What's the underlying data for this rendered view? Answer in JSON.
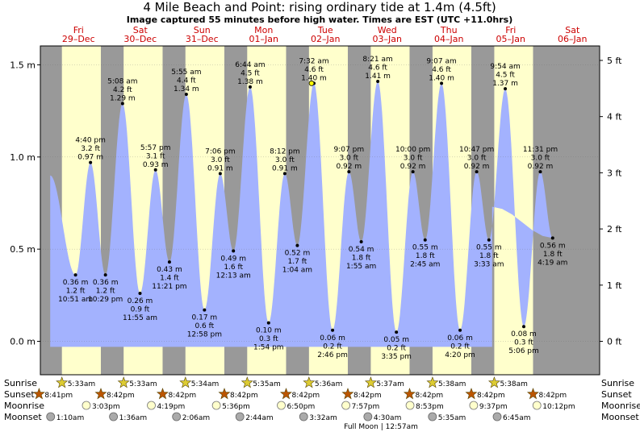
{
  "title": "4 Mile Beach and Point: rising  ordinary tide at 1.4m (4.5ft)",
  "subtitle": "Image captured 55 minutes before high water. Times are EST (UTC +11.0hrs)",
  "days": [
    {
      "dow": "Fri",
      "date": "29–Dec"
    },
    {
      "dow": "Sat",
      "date": "30–Dec"
    },
    {
      "dow": "Sun",
      "date": "31–Dec"
    },
    {
      "dow": "Mon",
      "date": "01–Jan"
    },
    {
      "dow": "Tue",
      "date": "02–Jan"
    },
    {
      "dow": "Wed",
      "date": "03–Jan"
    },
    {
      "dow": "Thu",
      "date": "04–Jan"
    },
    {
      "dow": "Fri",
      "date": "05–Jan"
    },
    {
      "dow": "Sat",
      "date": "06–Jan"
    }
  ],
  "chart_data": {
    "type": "area",
    "x_unit": "hours from 29-Dec 00:00 EST",
    "y_unit": "m",
    "ylim_m": [
      -0.03,
      1.6
    ],
    "xlim_h": [
      0,
      216
    ],
    "left_ticks": [
      "0.0 m",
      "0.5 m",
      "1.0 m",
      "1.5 m"
    ],
    "left_tick_values": [
      0,
      0.5,
      1.0,
      1.5
    ],
    "right_ticks": [
      "0 ft",
      "1 ft",
      "2 ft",
      "3 ft",
      "4 ft",
      "5 ft"
    ],
    "right_tick_values": [
      0,
      1,
      2,
      3,
      4,
      5
    ],
    "series_start": {
      "t": 1.0,
      "h": 0.9
    },
    "series_end": {
      "t": 172.8,
      "h": 0.73
    },
    "extremes": [
      {
        "t": 10.85,
        "h": 0.36,
        "label": [
          "0.36 m",
          "1.2 ft",
          "10:51 am"
        ],
        "low": true
      },
      {
        "t": 16.67,
        "h": 0.97,
        "label": [
          "4:40 pm",
          "3.2 ft",
          "0.97 m"
        ],
        "low": false
      },
      {
        "t": 22.48,
        "h": 0.36,
        "label": [
          "0.36 m",
          "1.2 ft",
          "10:29 pm"
        ],
        "low": true
      },
      {
        "t": 29.13,
        "h": 1.29,
        "label": [
          "5:08 am",
          "4.2 ft",
          "1.29 m"
        ],
        "low": false
      },
      {
        "t": 35.92,
        "h": 0.26,
        "label": [
          "0.26 m",
          "0.9 ft",
          "11:55 am"
        ],
        "low": true
      },
      {
        "t": 41.95,
        "h": 0.93,
        "label": [
          "5:57 pm",
          "3.1 ft",
          "0.93 m"
        ],
        "low": false
      },
      {
        "t": 47.35,
        "h": 0.43,
        "label": [
          "0.43 m",
          "1.4 ft",
          "11:21 pm"
        ],
        "low": true
      },
      {
        "t": 53.92,
        "h": 1.34,
        "label": [
          "5:55 am",
          "4.4 ft",
          "1.34 m"
        ],
        "low": false
      },
      {
        "t": 60.97,
        "h": 0.17,
        "label": [
          "0.17 m",
          "0.6 ft",
          "12:58 pm"
        ],
        "low": true
      },
      {
        "t": 67.1,
        "h": 0.91,
        "label": [
          "7:06 pm",
          "3.0 ft",
          "0.91 m"
        ],
        "low": false
      },
      {
        "t": 72.22,
        "h": 0.49,
        "label": [
          "0.49 m",
          "1.6 ft",
          "12:13 am"
        ],
        "low": true
      },
      {
        "t": 78.73,
        "h": 1.38,
        "label": [
          "6:44 am",
          "4.5 ft",
          "1.38 m"
        ],
        "low": false
      },
      {
        "t": 85.9,
        "h": 0.1,
        "label": [
          "0.10 m",
          "0.3 ft",
          "1:54 pm"
        ],
        "low": true
      },
      {
        "t": 92.2,
        "h": 0.91,
        "label": [
          "8:12 pm",
          "3.0 ft",
          "0.91 m"
        ],
        "low": false
      },
      {
        "t": 97.07,
        "h": 0.52,
        "label": [
          "0.52 m",
          "1.7 ft",
          "1:04 am"
        ],
        "low": true
      },
      {
        "t": 103.53,
        "h": 1.4,
        "label": [
          "7:32 am",
          "4.6 ft",
          "1.40 m"
        ],
        "low": false
      },
      {
        "t": 110.77,
        "h": 0.06,
        "label": [
          "0.06 m",
          "0.2 ft",
          "2:46 pm"
        ],
        "low": true
      },
      {
        "t": 117.12,
        "h": 0.92,
        "label": [
          "9:07 pm",
          "3.0 ft",
          "0.92 m"
        ],
        "low": false
      },
      {
        "t": 121.92,
        "h": 0.54,
        "label": [
          "0.54 m",
          "1.8 ft",
          "1:55 am"
        ],
        "low": true
      },
      {
        "t": 128.35,
        "h": 1.41,
        "label": [
          "8:21 am",
          "4.6 ft",
          "1.41 m"
        ],
        "low": false
      },
      {
        "t": 135.58,
        "h": 0.05,
        "label": [
          "0.05 m",
          "0.2 ft",
          "3:35 pm"
        ],
        "low": true
      },
      {
        "t": 142.0,
        "h": 0.92,
        "label": [
          "10:00 pm",
          "3.0 ft",
          "0.92 m"
        ],
        "low": false
      },
      {
        "t": 146.75,
        "h": 0.55,
        "label": [
          "0.55 m",
          "1.8 ft",
          "2:45 am"
        ],
        "low": true
      },
      {
        "t": 153.12,
        "h": 1.4,
        "label": [
          "9:07 am",
          "4.6 ft",
          "1.40 m"
        ],
        "low": false
      },
      {
        "t": 160.33,
        "h": 0.06,
        "label": [
          "0.06 m",
          "0.2 ft",
          "4:20 pm"
        ],
        "low": true
      },
      {
        "t": 166.78,
        "h": 0.92,
        "label": [
          "10:47 pm",
          "3.0 ft",
          "0.92 m"
        ],
        "low": false
      },
      {
        "t": 171.55,
        "h": 0.55,
        "label": [
          "0.55 m",
          "1.8 ft",
          "3:33 am"
        ],
        "low": true
      },
      {
        "t": 177.9,
        "h": 1.37,
        "label": [
          "9:54 am",
          "4.5 ft",
          "1.37 m"
        ],
        "low": false
      },
      {
        "t": 185.1,
        "h": 0.08,
        "label": [
          "0.08 m",
          "0.3 ft",
          "5:06 pm"
        ],
        "low": true
      },
      {
        "t": 191.52,
        "h": 0.92,
        "label": [
          "11:31 pm",
          "3.0 ft",
          "0.92 m"
        ],
        "low": false
      },
      {
        "t": 196.32,
        "h": 0.56,
        "label": [
          "0.56 m",
          "1.8 ft",
          "4:19 am"
        ],
        "low": true
      }
    ],
    "current": {
      "t": 102.6,
      "h": 1.4
    }
  },
  "sunrise": {
    "label": "Sunrise",
    "times": [
      "5:33am",
      "5:33am",
      "5:34am",
      "5:35am",
      "5:36am",
      "5:37am",
      "5:38am",
      "5:38am"
    ],
    "hours": [
      5.55,
      5.55,
      5.57,
      5.58,
      5.6,
      5.62,
      5.63,
      5.63
    ]
  },
  "sunset": {
    "label": "Sunset",
    "times": [
      "8:41pm",
      "8:42pm",
      "8:42pm",
      "8:42pm",
      "8:42pm",
      "8:42pm",
      "8:42pm",
      "8:42pm",
      "8:42pm"
    ],
    "hours": [
      20.68,
      20.7,
      20.7,
      20.7,
      20.7,
      20.7,
      20.7,
      20.7,
      20.7
    ],
    "day_index": [
      -1,
      0,
      1,
      2,
      3,
      4,
      5,
      6,
      7
    ]
  },
  "moonrise": {
    "label": "Moonrise",
    "times": [
      "3:03pm",
      "4:19pm",
      "5:36pm",
      "6:50pm",
      "7:57pm",
      "8:53pm",
      "9:37pm",
      "10:12pm"
    ],
    "hours": [
      15.05,
      16.32,
      17.6,
      18.83,
      19.95,
      20.88,
      21.62,
      22.2
    ]
  },
  "moonset": {
    "label": "Moonset",
    "times": [
      "1:10am",
      "1:36am",
      "2:06am",
      "2:44am",
      "3:32am",
      "4:30am",
      "5:35am",
      "6:45am"
    ],
    "hours": [
      1.17,
      1.6,
      2.1,
      2.73,
      3.53,
      4.5,
      5.58,
      6.75
    ]
  },
  "moon_phase": "Full Moon | 12:57am",
  "colors": {
    "water": "#a3b2fe",
    "day": "#ffffcc",
    "night": "#999999",
    "day_label": "#cc0000",
    "sun": "#ccaa00",
    "sunset": "#bb5500",
    "moonrise": "#ffffcc",
    "moonset": "#aaaaaa"
  }
}
